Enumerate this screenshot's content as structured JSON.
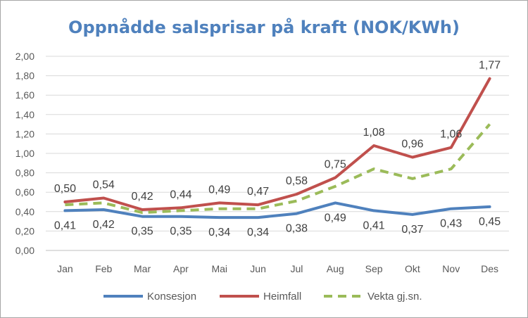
{
  "chart_data": {
    "type": "line",
    "title": "Oppnådde salsprisar på kraft (NOK/KWh)",
    "categories": [
      "Jan",
      "Feb",
      "Mar",
      "Apr",
      "Mai",
      "Jun",
      "Jul",
      "Aug",
      "Sep",
      "Okt",
      "Nov",
      "Des"
    ],
    "ylim": [
      0,
      2.0
    ],
    "yticks": [
      "0,00",
      "0,20",
      "0,40",
      "0,60",
      "0,80",
      "1,00",
      "1,20",
      "1,40",
      "1,60",
      "1,80",
      "2,00"
    ],
    "grid": true,
    "legend_position": "bottom",
    "series": [
      {
        "name": "Konsesjon",
        "color": "#4f81bd",
        "style": "solid",
        "values": [
          0.41,
          0.42,
          0.35,
          0.35,
          0.34,
          0.34,
          0.38,
          0.49,
          0.41,
          0.37,
          0.43,
          0.45
        ],
        "labels": [
          "0,41",
          "0,42",
          "0,35",
          "0,35",
          "0,34",
          "0,34",
          "0,38",
          "0,49",
          "0,41",
          "0,37",
          "0,43",
          "0,45"
        ]
      },
      {
        "name": "Heimfall",
        "color": "#c0504d",
        "style": "solid",
        "values": [
          0.5,
          0.54,
          0.42,
          0.44,
          0.49,
          0.47,
          0.58,
          0.75,
          1.08,
          0.96,
          1.06,
          1.77
        ],
        "labels": [
          "0,50",
          "0,54",
          "0,42",
          "0,44",
          "0,49",
          "0,47",
          "0,58",
          "0,75",
          "1,08",
          "0,96",
          "1,06",
          "1,77"
        ]
      },
      {
        "name": "Vekta gj.sn.",
        "color": "#9bbb59",
        "style": "dashed",
        "values": [
          0.47,
          0.49,
          0.39,
          0.41,
          0.43,
          0.43,
          0.51,
          0.66,
          0.84,
          0.74,
          0.84,
          1.3
        ]
      }
    ]
  }
}
